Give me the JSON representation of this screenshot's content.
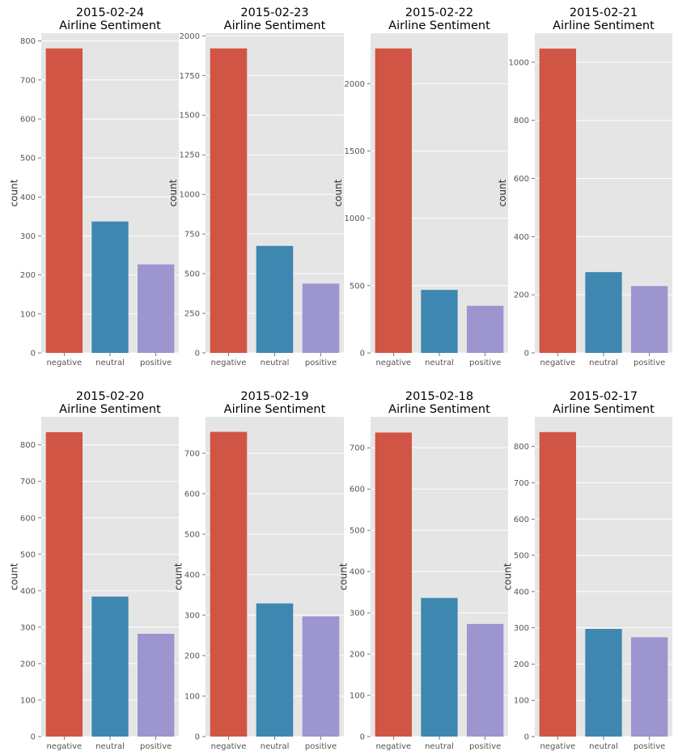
{
  "colors": {
    "panel_bg": "#e5e5e5",
    "grid": "#ffffff",
    "tick_text": "#555555",
    "title_text": "#000000",
    "negative": "#d15545",
    "neutral": "#3e87b0",
    "positive": "#9c95cf"
  },
  "chart_data": [
    {
      "type": "bar",
      "title": "2015-02-24\nAirline Sentiment",
      "xlabel": "",
      "ylabel": "count",
      "categories": [
        "negative",
        "neutral",
        "positive"
      ],
      "values": [
        781,
        337,
        227
      ],
      "ylim": [
        0,
        820
      ],
      "yticks": [
        0,
        100,
        200,
        300,
        400,
        500,
        600,
        700,
        800
      ],
      "grid": true
    },
    {
      "type": "bar",
      "title": "2015-02-23\nAirline Sentiment",
      "xlabel": "",
      "ylabel": "count",
      "categories": [
        "negative",
        "neutral",
        "positive"
      ],
      "values": [
        1921,
        675,
        437
      ],
      "ylim": [
        0,
        2017
      ],
      "yticks": [
        0,
        250,
        500,
        750,
        1000,
        1250,
        1500,
        1750,
        2000
      ],
      "grid": true
    },
    {
      "type": "bar",
      "title": "2015-02-22\nAirline Sentiment",
      "xlabel": "",
      "ylabel": "count",
      "categories": [
        "negative",
        "neutral",
        "positive"
      ],
      "values": [
        2262,
        468,
        350
      ],
      "ylim": [
        0,
        2375
      ],
      "yticks": [
        0,
        500,
        1000,
        1500,
        2000
      ],
      "grid": true
    },
    {
      "type": "bar",
      "title": "2015-02-21\nAirline Sentiment",
      "xlabel": "",
      "ylabel": "count",
      "categories": [
        "negative",
        "neutral",
        "positive"
      ],
      "values": [
        1047,
        278,
        230
      ],
      "ylim": [
        0,
        1100
      ],
      "yticks": [
        0,
        200,
        400,
        600,
        800,
        1000
      ],
      "grid": true
    },
    {
      "type": "bar",
      "title": "2015-02-20\nAirline Sentiment",
      "xlabel": "",
      "ylabel": "count",
      "categories": [
        "negative",
        "neutral",
        "positive"
      ],
      "values": [
        835,
        384,
        282
      ],
      "ylim": [
        0,
        877
      ],
      "yticks": [
        0,
        100,
        200,
        300,
        400,
        500,
        600,
        700,
        800
      ],
      "grid": true
    },
    {
      "type": "bar",
      "title": "2015-02-19\nAirline Sentiment",
      "xlabel": "",
      "ylabel": "count",
      "categories": [
        "negative",
        "neutral",
        "positive"
      ],
      "values": [
        753,
        329,
        297
      ],
      "ylim": [
        0,
        790
      ],
      "yticks": [
        0,
        100,
        200,
        300,
        400,
        500,
        600,
        700
      ],
      "grid": true
    },
    {
      "type": "bar",
      "title": "2015-02-18\nAirline Sentiment",
      "xlabel": "",
      "ylabel": "count",
      "categories": [
        "negative",
        "neutral",
        "positive"
      ],
      "values": [
        737,
        336,
        273
      ],
      "ylim": [
        0,
        775
      ],
      "yticks": [
        0,
        100,
        200,
        300,
        400,
        500,
        600,
        700
      ],
      "grid": true
    },
    {
      "type": "bar",
      "title": "2015-02-17\nAirline Sentiment",
      "xlabel": "",
      "ylabel": "count",
      "categories": [
        "negative",
        "neutral",
        "positive"
      ],
      "values": [
        840,
        297,
        274
      ],
      "ylim": [
        0,
        882
      ],
      "yticks": [
        0,
        100,
        200,
        300,
        400,
        500,
        600,
        700,
        800
      ],
      "grid": true
    }
  ]
}
